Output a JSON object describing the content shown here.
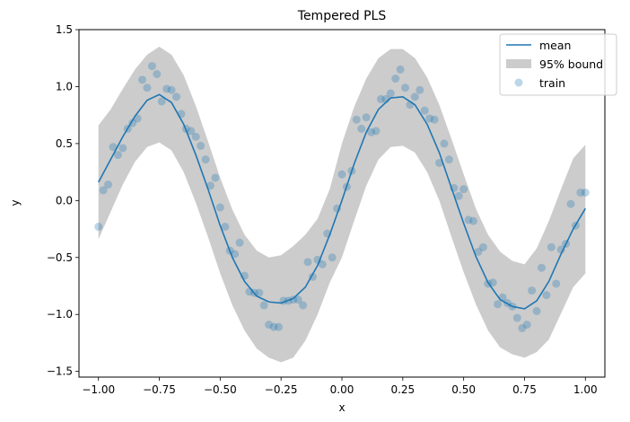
{
  "chart_data": {
    "type": "line",
    "title": "Tempered PLS",
    "xlabel": "x",
    "ylabel": "y",
    "xlim": [
      -1.08,
      1.08
    ],
    "ylim": [
      -1.55,
      1.5
    ],
    "xticks": [
      -1.0,
      -0.75,
      -0.5,
      -0.25,
      0.0,
      0.25,
      0.5,
      0.75,
      1.0
    ],
    "xtick_labels": [
      "−1.00",
      "−0.75",
      "−0.50",
      "−0.25",
      "0.00",
      "0.25",
      "0.50",
      "0.75",
      "1.00"
    ],
    "yticks": [
      -1.5,
      -1.0,
      -0.5,
      0.0,
      0.5,
      1.0,
      1.5
    ],
    "ytick_labels": [
      "−1.5",
      "−1.0",
      "−0.5",
      "0.0",
      "0.5",
      "1.0",
      "1.5"
    ],
    "grid": false,
    "legend_position": "top-right",
    "legend": [
      "mean",
      "95% bound",
      "train"
    ],
    "colors": {
      "mean": "#1f77b4",
      "band": "#cccccc",
      "train": "#1f77b4"
    },
    "mean": {
      "name": "mean",
      "x": [
        -1.0,
        -0.95,
        -0.9,
        -0.85,
        -0.8,
        -0.75,
        -0.7,
        -0.65,
        -0.6,
        -0.55,
        -0.5,
        -0.45,
        -0.4,
        -0.35,
        -0.3,
        -0.25,
        -0.2,
        -0.15,
        -0.1,
        -0.05,
        0.0,
        0.05,
        0.1,
        0.15,
        0.2,
        0.25,
        0.3,
        0.35,
        0.4,
        0.45,
        0.5,
        0.55,
        0.6,
        0.65,
        0.7,
        0.75,
        0.8,
        0.85,
        0.9,
        0.95,
        1.0
      ],
      "y": [
        0.16,
        0.36,
        0.56,
        0.74,
        0.88,
        0.93,
        0.86,
        0.67,
        0.4,
        0.1,
        -0.22,
        -0.5,
        -0.71,
        -0.84,
        -0.89,
        -0.9,
        -0.86,
        -0.76,
        -0.57,
        -0.3,
        0.0,
        0.32,
        0.6,
        0.8,
        0.9,
        0.91,
        0.84,
        0.67,
        0.42,
        0.11,
        -0.2,
        -0.49,
        -0.72,
        -0.87,
        -0.93,
        -0.95,
        -0.88,
        -0.71,
        -0.47,
        -0.25,
        -0.07
      ]
    },
    "band": {
      "name": "95% bound",
      "x": [
        -1.0,
        -0.95,
        -0.9,
        -0.85,
        -0.8,
        -0.75,
        -0.7,
        -0.65,
        -0.6,
        -0.55,
        -0.5,
        -0.45,
        -0.4,
        -0.35,
        -0.3,
        -0.25,
        -0.2,
        -0.15,
        -0.1,
        -0.05,
        0.0,
        0.05,
        0.1,
        0.15,
        0.2,
        0.25,
        0.3,
        0.35,
        0.4,
        0.45,
        0.5,
        0.55,
        0.6,
        0.65,
        0.7,
        0.75,
        0.8,
        0.85,
        0.9,
        0.95,
        1.0
      ],
      "upper": [
        0.66,
        0.8,
        0.98,
        1.15,
        1.28,
        1.35,
        1.28,
        1.1,
        0.83,
        0.52,
        0.2,
        -0.08,
        -0.3,
        -0.44,
        -0.5,
        -0.48,
        -0.4,
        -0.3,
        -0.16,
        0.1,
        0.5,
        0.82,
        1.07,
        1.25,
        1.33,
        1.33,
        1.25,
        1.08,
        0.84,
        0.54,
        0.23,
        -0.07,
        -0.3,
        -0.45,
        -0.53,
        -0.56,
        -0.42,
        -0.18,
        0.1,
        0.37,
        0.49
      ],
      "lower": [
        -0.34,
        -0.1,
        0.14,
        0.34,
        0.47,
        0.51,
        0.44,
        0.25,
        -0.02,
        -0.32,
        -0.64,
        -0.92,
        -1.14,
        -1.3,
        -1.38,
        -1.42,
        -1.38,
        -1.23,
        -1.0,
        -0.72,
        -0.5,
        -0.18,
        0.13,
        0.36,
        0.47,
        0.48,
        0.42,
        0.25,
        0.0,
        -0.32,
        -0.63,
        -0.91,
        -1.14,
        -1.29,
        -1.35,
        -1.38,
        -1.33,
        -1.22,
        -0.99,
        -0.76,
        -0.64
      ]
    },
    "train": {
      "name": "train",
      "x": [
        -1.0,
        -0.98,
        -0.96,
        -0.94,
        -0.92,
        -0.9,
        -0.88,
        -0.86,
        -0.84,
        -0.82,
        -0.8,
        -0.78,
        -0.76,
        -0.74,
        -0.72,
        -0.7,
        -0.68,
        -0.66,
        -0.64,
        -0.62,
        -0.6,
        -0.58,
        -0.56,
        -0.54,
        -0.52,
        -0.5,
        -0.48,
        -0.46,
        -0.44,
        -0.42,
        -0.4,
        -0.38,
        -0.36,
        -0.34,
        -0.32,
        -0.3,
        -0.28,
        -0.26,
        -0.24,
        -0.22,
        -0.2,
        -0.18,
        -0.16,
        -0.14,
        -0.12,
        -0.1,
        -0.08,
        -0.06,
        -0.04,
        -0.02,
        0.0,
        0.02,
        0.04,
        0.06,
        0.08,
        0.1,
        0.12,
        0.14,
        0.16,
        0.18,
        0.2,
        0.22,
        0.24,
        0.26,
        0.28,
        0.3,
        0.32,
        0.34,
        0.36,
        0.38,
        0.4,
        0.42,
        0.44,
        0.46,
        0.48,
        0.5,
        0.52,
        0.54,
        0.56,
        0.58,
        0.6,
        0.62,
        0.64,
        0.66,
        0.68,
        0.7,
        0.72,
        0.74,
        0.76,
        0.78,
        0.8,
        0.82,
        0.84,
        0.86,
        0.88,
        0.9,
        0.92,
        0.94,
        0.96,
        0.98,
        1.0
      ],
      "y": [
        -0.23,
        0.09,
        0.14,
        0.47,
        0.4,
        0.46,
        0.63,
        0.68,
        0.72,
        1.06,
        0.99,
        1.18,
        1.11,
        0.87,
        0.98,
        0.97,
        0.91,
        0.76,
        0.63,
        0.61,
        0.56,
        0.48,
        0.36,
        0.13,
        0.2,
        -0.06,
        -0.23,
        -0.44,
        -0.47,
        -0.37,
        -0.66,
        -0.8,
        -0.81,
        -0.81,
        -0.92,
        -1.09,
        -1.11,
        -1.11,
        -0.88,
        -0.88,
        -0.87,
        -0.87,
        -0.92,
        -0.54,
        -0.67,
        -0.52,
        -0.56,
        -0.29,
        -0.5,
        -0.07,
        0.23,
        0.12,
        0.26,
        0.71,
        0.63,
        0.73,
        0.6,
        0.61,
        0.89,
        0.89,
        0.94,
        1.07,
        1.15,
        0.99,
        0.84,
        0.91,
        0.97,
        0.79,
        0.72,
        0.71,
        0.33,
        0.5,
        0.36,
        0.11,
        0.04,
        0.1,
        -0.17,
        -0.18,
        -0.45,
        -0.41,
        -0.73,
        -0.72,
        -0.91,
        -0.85,
        -0.9,
        -0.93,
        -1.03,
        -1.12,
        -1.09,
        -0.79,
        -0.97,
        -0.59,
        -0.83,
        -0.41,
        -0.73,
        -0.43,
        -0.38,
        -0.03,
        -0.22,
        0.07,
        0.07
      ]
    }
  }
}
